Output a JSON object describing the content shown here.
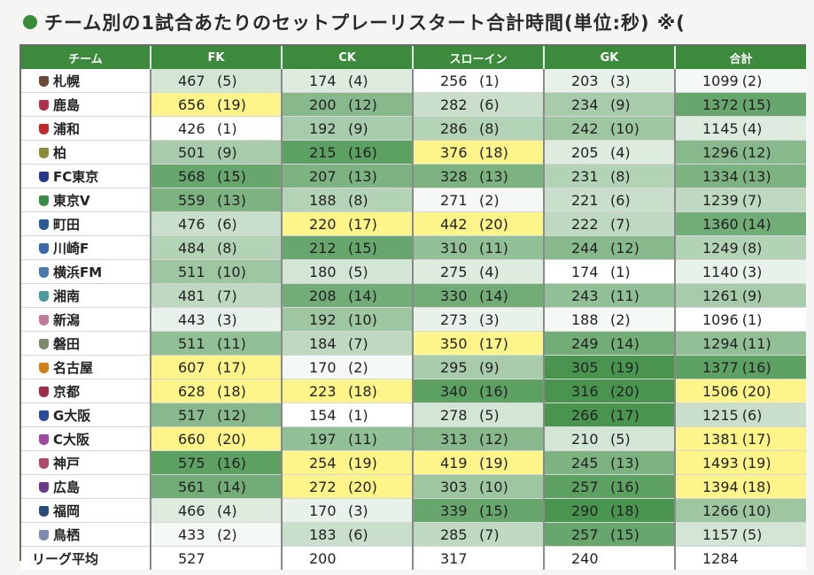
{
  "title": "チーム別の1試合あたりのセットプレーリスタート合計時間(単位:秒) ※(",
  "chart_data": {
    "type": "table",
    "columns": [
      "チーム",
      "FK",
      "CK",
      "スローイン",
      "GK",
      "合計"
    ],
    "rows": [
      {
        "team": "札幌",
        "icon_color": "#6b4a3a",
        "cells": [
          {
            "v": "467",
            "r": "(5)"
          },
          {
            "v": "174",
            "r": "(4)"
          },
          {
            "v": "256",
            "r": "(1)"
          },
          {
            "v": "203",
            "r": "(3)"
          },
          {
            "v": "1099",
            "r": "(2)"
          }
        ]
      },
      {
        "team": "鹿島",
        "icon_color": "#b0304a",
        "cells": [
          {
            "v": "656",
            "r": "(19)"
          },
          {
            "v": "200",
            "r": "(12)"
          },
          {
            "v": "282",
            "r": "(6)"
          },
          {
            "v": "234",
            "r": "(9)"
          },
          {
            "v": "1372",
            "r": "(15)"
          }
        ]
      },
      {
        "team": "浦和",
        "icon_color": "#c02a2a",
        "cells": [
          {
            "v": "426",
            "r": "(1)"
          },
          {
            "v": "192",
            "r": "(9)"
          },
          {
            "v": "286",
            "r": "(8)"
          },
          {
            "v": "242",
            "r": "(10)"
          },
          {
            "v": "1145",
            "r": "(4)"
          }
        ]
      },
      {
        "team": "柏",
        "icon_color": "#8a8a3a",
        "cells": [
          {
            "v": "501",
            "r": "(9)"
          },
          {
            "v": "215",
            "r": "(16)"
          },
          {
            "v": "376",
            "r": "(18)"
          },
          {
            "v": "205",
            "r": "(4)"
          },
          {
            "v": "1296",
            "r": "(12)"
          }
        ]
      },
      {
        "team": "FC東京",
        "icon_color": "#2a3a8a",
        "cells": [
          {
            "v": "568",
            "r": "(15)"
          },
          {
            "v": "207",
            "r": "(13)"
          },
          {
            "v": "328",
            "r": "(13)"
          },
          {
            "v": "231",
            "r": "(8)"
          },
          {
            "v": "1334",
            "r": "(13)"
          }
        ]
      },
      {
        "team": "東京V",
        "icon_color": "#3a8a4a",
        "cells": [
          {
            "v": "559",
            "r": "(13)"
          },
          {
            "v": "188",
            "r": "(8)"
          },
          {
            "v": "271",
            "r": "(2)"
          },
          {
            "v": "221",
            "r": "(6)"
          },
          {
            "v": "1239",
            "r": "(7)"
          }
        ]
      },
      {
        "team": "町田",
        "icon_color": "#2a5a9a",
        "cells": [
          {
            "v": "476",
            "r": "(6)"
          },
          {
            "v": "220",
            "r": "(17)"
          },
          {
            "v": "442",
            "r": "(20)"
          },
          {
            "v": "222",
            "r": "(7)"
          },
          {
            "v": "1360",
            "r": "(14)"
          }
        ]
      },
      {
        "team": "川崎F",
        "icon_color": "#3a6aaa",
        "cells": [
          {
            "v": "484",
            "r": "(8)"
          },
          {
            "v": "212",
            "r": "(15)"
          },
          {
            "v": "310",
            "r": "(11)"
          },
          {
            "v": "244",
            "r": "(12)"
          },
          {
            "v": "1249",
            "r": "(8)"
          }
        ]
      },
      {
        "team": "横浜FM",
        "icon_color": "#4a7ab0",
        "cells": [
          {
            "v": "511",
            "r": "(10)"
          },
          {
            "v": "180",
            "r": "(5)"
          },
          {
            "v": "275",
            "r": "(4)"
          },
          {
            "v": "174",
            "r": "(1)"
          },
          {
            "v": "1140",
            "r": "(3)"
          }
        ]
      },
      {
        "team": "湘南",
        "icon_color": "#4a9aa0",
        "cells": [
          {
            "v": "481",
            "r": "(7)"
          },
          {
            "v": "208",
            "r": "(14)"
          },
          {
            "v": "330",
            "r": "(14)"
          },
          {
            "v": "243",
            "r": "(11)"
          },
          {
            "v": "1261",
            "r": "(9)"
          }
        ]
      },
      {
        "team": "新潟",
        "icon_color": "#c07a9a",
        "cells": [
          {
            "v": "443",
            "r": "(3)"
          },
          {
            "v": "192",
            "r": "(10)"
          },
          {
            "v": "273",
            "r": "(3)"
          },
          {
            "v": "188",
            "r": "(2)"
          },
          {
            "v": "1096",
            "r": "(1)"
          }
        ]
      },
      {
        "team": "磐田",
        "icon_color": "#7a8a6a",
        "cells": [
          {
            "v": "511",
            "r": "(11)"
          },
          {
            "v": "184",
            "r": "(7)"
          },
          {
            "v": "350",
            "r": "(17)"
          },
          {
            "v": "249",
            "r": "(14)"
          },
          {
            "v": "1294",
            "r": "(11)"
          }
        ]
      },
      {
        "team": "名古屋",
        "icon_color": "#d0801a",
        "cells": [
          {
            "v": "607",
            "r": "(17)"
          },
          {
            "v": "170",
            "r": "(2)"
          },
          {
            "v": "295",
            "r": "(9)"
          },
          {
            "v": "305",
            "r": "(19)"
          },
          {
            "v": "1377",
            "r": "(16)"
          }
        ]
      },
      {
        "team": "京都",
        "icon_color": "#a02a4a",
        "cells": [
          {
            "v": "628",
            "r": "(18)"
          },
          {
            "v": "223",
            "r": "(18)"
          },
          {
            "v": "340",
            "r": "(16)"
          },
          {
            "v": "316",
            "r": "(20)"
          },
          {
            "v": "1506",
            "r": "(20)"
          }
        ]
      },
      {
        "team": "G大阪",
        "icon_color": "#2a4a9a",
        "cells": [
          {
            "v": "517",
            "r": "(12)"
          },
          {
            "v": "154",
            "r": "(1)"
          },
          {
            "v": "278",
            "r": "(5)"
          },
          {
            "v": "266",
            "r": "(17)"
          },
          {
            "v": "1215",
            "r": "(6)"
          }
        ]
      },
      {
        "team": "C大阪",
        "icon_color": "#9a4aa0",
        "cells": [
          {
            "v": "660",
            "r": "(20)"
          },
          {
            "v": "197",
            "r": "(11)"
          },
          {
            "v": "313",
            "r": "(12)"
          },
          {
            "v": "210",
            "r": "(5)"
          },
          {
            "v": "1381",
            "r": "(17)"
          }
        ]
      },
      {
        "team": "神戸",
        "icon_color": "#b04a6a",
        "cells": [
          {
            "v": "575",
            "r": "(16)"
          },
          {
            "v": "254",
            "r": "(19)"
          },
          {
            "v": "419",
            "r": "(19)"
          },
          {
            "v": "245",
            "r": "(13)"
          },
          {
            "v": "1493",
            "r": "(19)"
          }
        ]
      },
      {
        "team": "広島",
        "icon_color": "#6a3a8a",
        "cells": [
          {
            "v": "561",
            "r": "(14)"
          },
          {
            "v": "272",
            "r": "(20)"
          },
          {
            "v": "303",
            "r": "(10)"
          },
          {
            "v": "257",
            "r": "(16)"
          },
          {
            "v": "1394",
            "r": "(18)"
          }
        ]
      },
      {
        "team": "福岡",
        "icon_color": "#2a4a7a",
        "cells": [
          {
            "v": "466",
            "r": "(4)"
          },
          {
            "v": "170",
            "r": "(3)"
          },
          {
            "v": "339",
            "r": "(15)"
          },
          {
            "v": "290",
            "r": "(18)"
          },
          {
            "v": "1266",
            "r": "(10)"
          }
        ]
      },
      {
        "team": "鳥栖",
        "icon_color": "#7a8ab0",
        "cells": [
          {
            "v": "433",
            "r": "(2)"
          },
          {
            "v": "183",
            "r": "(6)"
          },
          {
            "v": "285",
            "r": "(7)"
          },
          {
            "v": "257",
            "r": "(15)"
          },
          {
            "v": "1157",
            "r": "(5)"
          }
        ]
      }
    ],
    "average_label": "リーグ平均",
    "averages": [
      "527",
      "200",
      "317",
      "240",
      "1284"
    ]
  },
  "colors": {
    "header_green": "#3c8a3c",
    "top_rank": "#fdf58a",
    "high_shade": "#3f8f46",
    "low_shade": "#ffffff"
  }
}
